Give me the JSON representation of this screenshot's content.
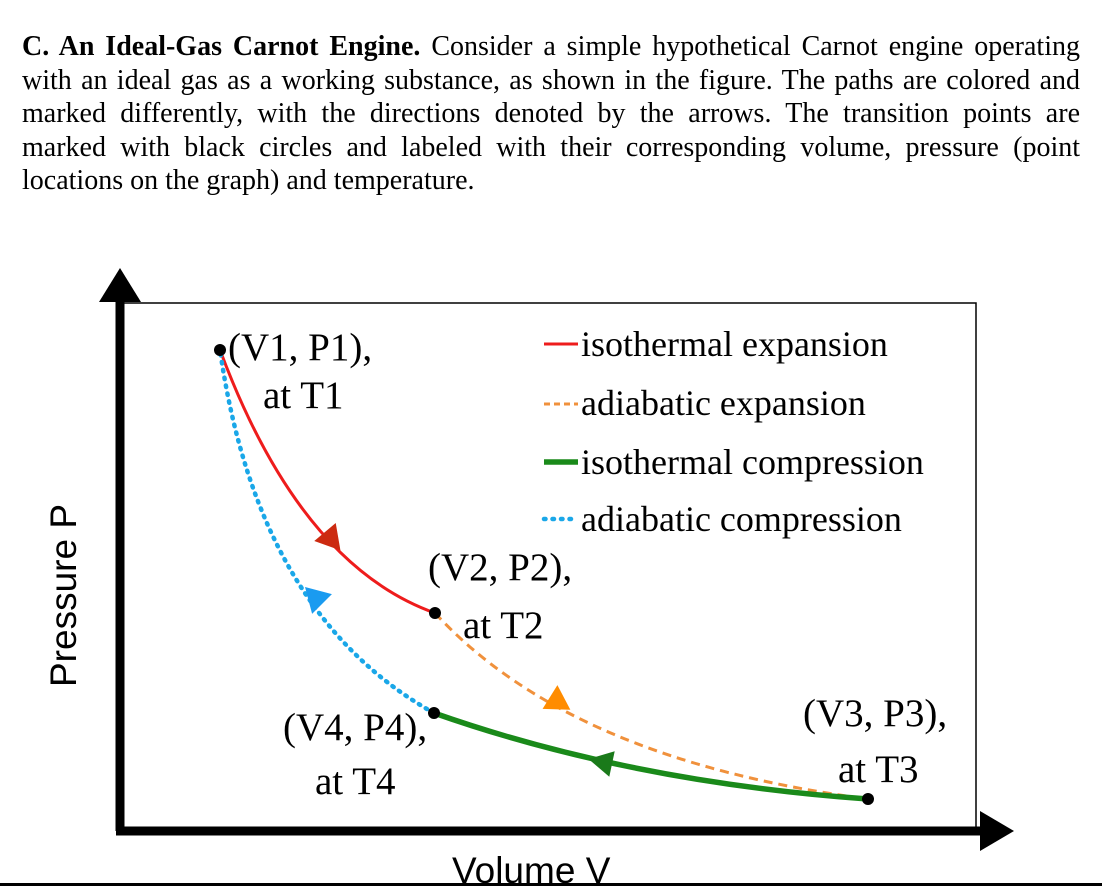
{
  "problem": {
    "heading": "C. An Ideal-Gas Carnot Engine.",
    "body": "Consider a simple hypothetical Carnot engine operating with an ideal gas as a working substance, as shown in the figure. The paths are colored and marked differently, with the directions denoted by the arrows. The transition points are marked with black circles and labeled with their corresponding volume, pressure (point locations on the graph) and temperature."
  },
  "diagram": {
    "y_axis_label": "Pressure P",
    "x_axis_label": "Volume V",
    "legend": [
      {
        "label": "isothermal expansion",
        "color": "#ee1c1c",
        "style": "solid"
      },
      {
        "label": "adiabatic expansion",
        "color": "#f0913c",
        "style": "dashed"
      },
      {
        "label": "isothermal compression",
        "color": "#1a8a1a",
        "style": "solid-thick"
      },
      {
        "label": "adiabatic compression",
        "color": "#1aa7e8",
        "style": "dotted"
      }
    ],
    "points": [
      {
        "id": "1",
        "name": "(V1, P1),",
        "temp": "at T1"
      },
      {
        "id": "2",
        "name": "(V2, P2),",
        "temp": "at T2"
      },
      {
        "id": "3",
        "name": "(V3, P3),",
        "temp": "at T3"
      },
      {
        "id": "4",
        "name": "(V4, P4),",
        "temp": "at T4"
      }
    ],
    "arrow_colors": {
      "isothermal_expansion": "#cc2a10",
      "adiabatic_expansion": "#ff8c00",
      "isothermal_compression": "#1a7a1a",
      "adiabatic_compression": "#1a9bf0"
    }
  }
}
